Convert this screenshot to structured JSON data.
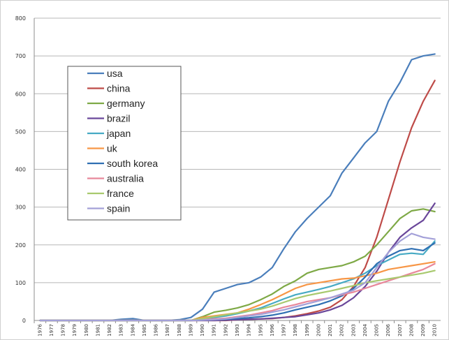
{
  "chart_data": {
    "type": "line",
    "title": "",
    "xlabel": "",
    "ylabel": "",
    "ylim": [
      0,
      800
    ],
    "y_ticks": [
      "0",
      "100",
      "200",
      "300",
      "400",
      "500",
      "600",
      "700",
      "800"
    ],
    "grid": "horizontal",
    "legend_position": "top-left inside",
    "x": [
      "1976",
      "1977",
      "1978",
      "1979",
      "1980",
      "1981",
      "1982",
      "1983",
      "1984",
      "1985",
      "1986",
      "1987",
      "1988",
      "1989",
      "1990",
      "1991",
      "1992",
      "1993",
      "1994",
      "1995",
      "1996",
      "1997",
      "1998",
      "1999",
      "2000",
      "2001",
      "2002",
      "2003",
      "2004",
      "2005",
      "2006",
      "2007",
      "2008",
      "2009",
      "2010"
    ],
    "series": [
      {
        "name": "usa",
        "color": "#4a7ebb",
        "values": [
          0,
          0,
          0,
          0,
          0,
          0,
          0,
          3,
          5,
          0,
          0,
          0,
          2,
          8,
          30,
          75,
          85,
          95,
          100,
          115,
          140,
          190,
          235,
          270,
          300,
          330,
          390,
          430,
          470,
          500,
          580,
          630,
          690,
          700,
          705
        ]
      },
      {
        "name": "china",
        "color": "#be4b48",
        "values": [
          0,
          0,
          0,
          0,
          0,
          0,
          0,
          0,
          0,
          0,
          0,
          0,
          0,
          0,
          0,
          0,
          0,
          2,
          3,
          4,
          5,
          8,
          12,
          18,
          25,
          35,
          55,
          90,
          140,
          220,
          320,
          420,
          510,
          580,
          635
        ]
      },
      {
        "name": "germany",
        "color": "#7ea946",
        "values": [
          0,
          0,
          0,
          0,
          0,
          0,
          0,
          0,
          0,
          0,
          0,
          0,
          0,
          0,
          10,
          22,
          27,
          33,
          42,
          55,
          70,
          90,
          105,
          125,
          135,
          140,
          145,
          155,
          170,
          200,
          235,
          270,
          290,
          295,
          288
        ]
      },
      {
        "name": "brazil",
        "color": "#6a479a",
        "values": [
          0,
          0,
          0,
          0,
          0,
          0,
          0,
          0,
          0,
          0,
          0,
          0,
          0,
          0,
          0,
          0,
          1,
          2,
          3,
          4,
          6,
          8,
          10,
          15,
          20,
          28,
          40,
          60,
          90,
          130,
          180,
          220,
          245,
          265,
          310
        ]
      },
      {
        "name": "japan",
        "color": "#46aac4",
        "values": [
          0,
          0,
          0,
          0,
          0,
          0,
          0,
          0,
          0,
          0,
          0,
          0,
          0,
          0,
          5,
          8,
          12,
          18,
          25,
          33,
          45,
          57,
          68,
          75,
          82,
          90,
          100,
          110,
          125,
          145,
          160,
          175,
          178,
          175,
          210
        ]
      },
      {
        "name": "uk",
        "color": "#f79646",
        "values": [
          0,
          0,
          0,
          0,
          0,
          0,
          0,
          0,
          0,
          0,
          0,
          0,
          0,
          0,
          8,
          12,
          16,
          20,
          30,
          42,
          55,
          70,
          85,
          95,
          100,
          105,
          110,
          112,
          118,
          125,
          135,
          140,
          145,
          150,
          155
        ]
      },
      {
        "name": "south korea",
        "color": "#2f6fb2",
        "values": [
          0,
          0,
          0,
          0,
          0,
          0,
          0,
          0,
          0,
          0,
          0,
          0,
          0,
          0,
          1,
          2,
          3,
          5,
          7,
          10,
          14,
          20,
          28,
          35,
          42,
          52,
          65,
          85,
          115,
          150,
          170,
          185,
          190,
          185,
          205
        ]
      },
      {
        "name": "australia",
        "color": "#e8879a",
        "values": [
          0,
          0,
          0,
          0,
          0,
          0,
          0,
          0,
          0,
          0,
          0,
          0,
          0,
          0,
          2,
          4,
          6,
          10,
          14,
          20,
          26,
          35,
          42,
          50,
          55,
          60,
          68,
          75,
          85,
          95,
          105,
          115,
          125,
          135,
          150
        ]
      },
      {
        "name": "france",
        "color": "#a8c96e",
        "values": [
          0,
          0,
          0,
          0,
          0,
          0,
          0,
          0,
          0,
          0,
          0,
          0,
          0,
          0,
          5,
          10,
          15,
          20,
          25,
          30,
          38,
          48,
          58,
          66,
          72,
          78,
          85,
          92,
          100,
          105,
          110,
          115,
          120,
          125,
          132
        ]
      },
      {
        "name": "spain",
        "color": "#a3a0d8",
        "values": [
          0,
          0,
          0,
          0,
          0,
          0,
          0,
          0,
          0,
          0,
          0,
          0,
          0,
          0,
          1,
          2,
          4,
          8,
          12,
          16,
          22,
          28,
          36,
          44,
          52,
          60,
          70,
          80,
          100,
          140,
          180,
          210,
          230,
          220,
          215
        ]
      }
    ]
  }
}
